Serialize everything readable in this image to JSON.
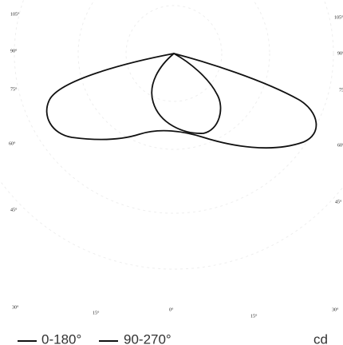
{
  "chart_data": {
    "type": "polar",
    "left_labels": [
      "105°",
      "90°",
      "75°",
      "60°",
      "45°",
      "30°"
    ],
    "right_labels": [
      "105°",
      "90°",
      "75°",
      "60°",
      "45°",
      "30°"
    ],
    "bottom_labels": [
      "15°",
      "0°",
      "15°"
    ],
    "series": [
      {
        "name": "0-180°",
        "color": "#111111"
      },
      {
        "name": "90-270°",
        "color": "#111111"
      }
    ],
    "unit": "cd"
  }
}
